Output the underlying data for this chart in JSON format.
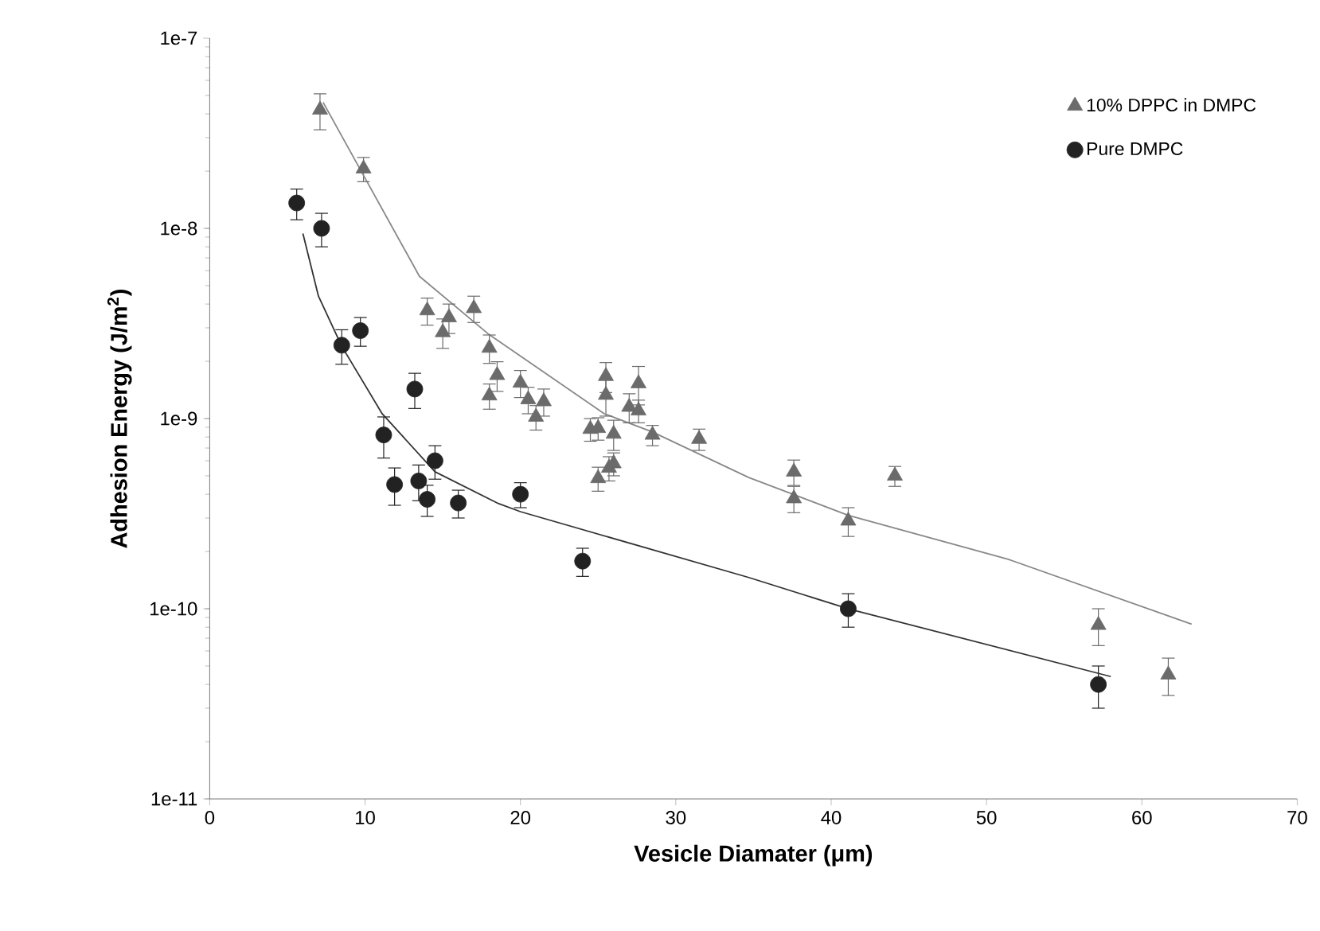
{
  "chart_data": {
    "type": "scatter",
    "xlabel": "Vesicle Diamater (μm)",
    "ylabel": "Adhesion Energy (J/m$^{2}$)",
    "xlim": [
      0,
      70
    ],
    "xticks": [
      0,
      10,
      20,
      30,
      40,
      50,
      60,
      70
    ],
    "ylim": [
      1e-11,
      1e-07
    ],
    "yticks": [
      {
        "value": 1e-11,
        "label": "1e-11"
      },
      {
        "value": 1e-10,
        "label": "1e-10"
      },
      {
        "value": 1e-09,
        "label": "1e-9"
      },
      {
        "value": 1e-08,
        "label": "1e-8"
      },
      {
        "value": 1e-07,
        "label": "1e-7"
      }
    ],
    "log": "y",
    "grid": false,
    "legend": "top right",
    "series": [
      {
        "name": "10% DPPC in DMPC",
        "type": "scatter",
        "marker": "triangle",
        "color": "#6b6b6b",
        "x": [
          7.1,
          9.9,
          14.0,
          15.4,
          15.0,
          17.0,
          18.0,
          18.5,
          18.0,
          20.0,
          20.5,
          21.5,
          21.0,
          24.5,
          25.0,
          25.5,
          25.5,
          26.0,
          25.0,
          25.7,
          26.0,
          27.0,
          27.6,
          27.6,
          28.5,
          31.5,
          37.6,
          37.6,
          41.1,
          44.1,
          57.2,
          61.7
        ],
        "values": [
          4.2e-08,
          2.06e-08,
          3.7e-09,
          3.4e-09,
          2.84e-09,
          3.8e-09,
          2.35e-09,
          1.69e-09,
          1.32e-09,
          1.54e-09,
          1.26e-09,
          1.23e-09,
          1.02e-09,
          8.8e-10,
          8.9e-10,
          1.67e-09,
          1.33e-09,
          8.3e-10,
          4.85e-10,
          5.5e-10,
          5.8e-10,
          1.15e-09,
          1.53e-09,
          1.1e-09,
          8.2e-10,
          7.8e-10,
          5.25e-10,
          3.8e-10,
          2.9e-10,
          5e-10,
          8.2e-11,
          4.5e-11
        ],
        "errors": [
          9e-09,
          3e-09,
          6e-10,
          6e-10,
          5e-10,
          6e-10,
          4e-10,
          3e-10,
          2e-10,
          2.5e-10,
          2e-10,
          2e-10,
          1.5e-10,
          1.2e-10,
          1.2e-10,
          3e-10,
          3e-10,
          1.5e-10,
          7e-11,
          8e-11,
          8e-11,
          2e-10,
          3.5e-10,
          1.5e-10,
          1e-10,
          1e-10,
          8e-11,
          6e-11,
          5e-11,
          6e-11,
          1.8e-11,
          1e-11
        ]
      },
      {
        "name": "Pure DMPC",
        "type": "scatter",
        "marker": "circle",
        "color": "#222222",
        "x": [
          5.6,
          7.2,
          8.5,
          9.7,
          11.2,
          11.9,
          13.2,
          13.45,
          14.0,
          14.5,
          16.0,
          20.0,
          24.0,
          41.1,
          57.2
        ],
        "values": [
          1.36e-08,
          1e-08,
          2.43e-09,
          2.9e-09,
          8.2e-10,
          4.5e-10,
          1.43e-09,
          4.7e-10,
          3.76e-10,
          6e-10,
          3.6e-10,
          4e-10,
          1.78e-10,
          1e-10,
          4e-11
        ],
        "errors": [
          2.5e-09,
          2e-09,
          5e-10,
          5e-10,
          2e-10,
          1e-10,
          3e-10,
          1e-10,
          7e-11,
          1.2e-10,
          6e-11,
          6e-11,
          3e-11,
          2e-11,
          1e-11
        ]
      },
      {
        "type": "line",
        "marker": "none",
        "color": "#888888",
        "x": [
          7.3,
          9.9,
          13.5,
          17.9,
          25.4,
          28.5,
          34.7,
          41.1,
          51.4,
          63.2
        ],
        "values": [
          4.6e-08,
          1.9e-08,
          5.6e-09,
          2.8e-09,
          1.06e-09,
          8.5e-10,
          4.9e-10,
          3.1e-10,
          1.82e-10,
          8.3e-11
        ]
      },
      {
        "type": "line",
        "marker": "none",
        "color": "#333333",
        "x": [
          6.0,
          7.0,
          8.5,
          11.1,
          14.5,
          18.6,
          20.0,
          34.7,
          41.1,
          58.0
        ],
        "values": [
          9.4e-09,
          4.4e-09,
          2.4e-09,
          1.06e-09,
          5.25e-10,
          3.57e-10,
          3.24e-10,
          1.46e-10,
          1e-10,
          4.4e-11
        ]
      }
    ]
  }
}
